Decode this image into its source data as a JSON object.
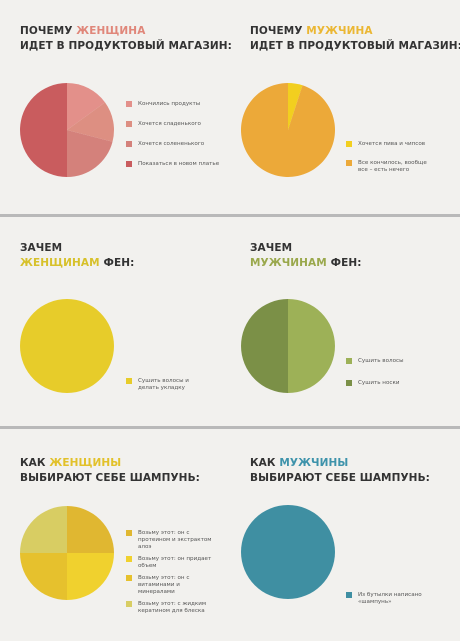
{
  "sections": {
    "shop_female": {
      "title_pre": "ПОЧЕМУ ",
      "title_highlight": "ЖЕНЩИНА",
      "title_line2": "ИДЕТ В ПРОДУКТОВЫЙ МАГАЗИН:",
      "highlight_color": "#e0877a",
      "chart": {
        "type": "pie",
        "slices": [
          {
            "label": "Кончились продукты",
            "value": 15,
            "color": "#e3908a"
          },
          {
            "label": "Хочется сладенького",
            "value": 14,
            "color": "#dd8f82"
          },
          {
            "label": "Хочется солененького",
            "value": 21,
            "color": "#d4817b"
          },
          {
            "label": "Показаться в новом платье",
            "value": 50,
            "color": "#c95c5e"
          }
        ]
      }
    },
    "shop_male": {
      "title_pre": "ПОЧЕМУ ",
      "title_highlight": "МУЖЧИНА",
      "title_line2": "ИДЕТ В ПРОДУКТОВЫЙ МАГАЗИН:",
      "highlight_color": "#ebb733",
      "chart": {
        "type": "pie",
        "slices": [
          {
            "label": "Хочется пива и чипсов",
            "value": 5,
            "color": "#f2cf1f"
          },
          {
            "label": "Все кончилось, вообще все – есть нечего",
            "value": 95,
            "color": "#eca939"
          }
        ]
      }
    },
    "dryer_female": {
      "title_pre": "ЗАЧЕМ",
      "title_highlight": "ЖЕНЩИНАМ",
      "title_post": " ФЕН:",
      "highlight_color": "#d7c12b",
      "chart": {
        "type": "pie",
        "slices": [
          {
            "label": "Сушить волосы и делать укладку",
            "value": 100,
            "color": "#e7cc2a"
          }
        ]
      }
    },
    "dryer_male": {
      "title_pre": "ЗАЧЕМ",
      "title_highlight": "МУЖЧИНАМ",
      "title_post": " ФЕН:",
      "highlight_color": "#9aa84c",
      "chart": {
        "type": "pie",
        "slices": [
          {
            "label": "Сушить волосы",
            "value": 50,
            "color": "#9db157"
          },
          {
            "label": "Сушить носки",
            "value": 50,
            "color": "#7b9047"
          }
        ]
      }
    },
    "shampoo_female": {
      "title_pre": "КАК ",
      "title_highlight": "ЖЕНЩИНЫ",
      "title_line2": "ВЫБИРАЮТ СЕБЕ ШАМПУНЬ:",
      "highlight_color": "#e2c12a",
      "chart": {
        "type": "pie",
        "slices": [
          {
            "label": "Возьму этот: он с протеином и экстрактом алоэ",
            "value": 25,
            "color": "#e0b731"
          },
          {
            "label": "Возьму этот: он придает объем",
            "value": 25,
            "color": "#f0d12e"
          },
          {
            "label": "Возьму этот: он с витаминами и минералами",
            "value": 25,
            "color": "#e6c12d"
          },
          {
            "label": "Возьму этот: с жидким кератином для блеска",
            "value": 25,
            "color": "#d8cd63"
          }
        ]
      }
    },
    "shampoo_male": {
      "title_pre": "КАК ",
      "title_highlight": "МУЖЧИНЫ",
      "title_line2": "ВЫБИРАЮТ СЕБЕ ШАМПУНЬ:",
      "highlight_color": "#3e93ab",
      "chart": {
        "type": "pie",
        "slices": [
          {
            "label": "Из бутылки написано «шампунь»",
            "value": 100,
            "color": "#3f8fa2"
          }
        ]
      }
    }
  }
}
